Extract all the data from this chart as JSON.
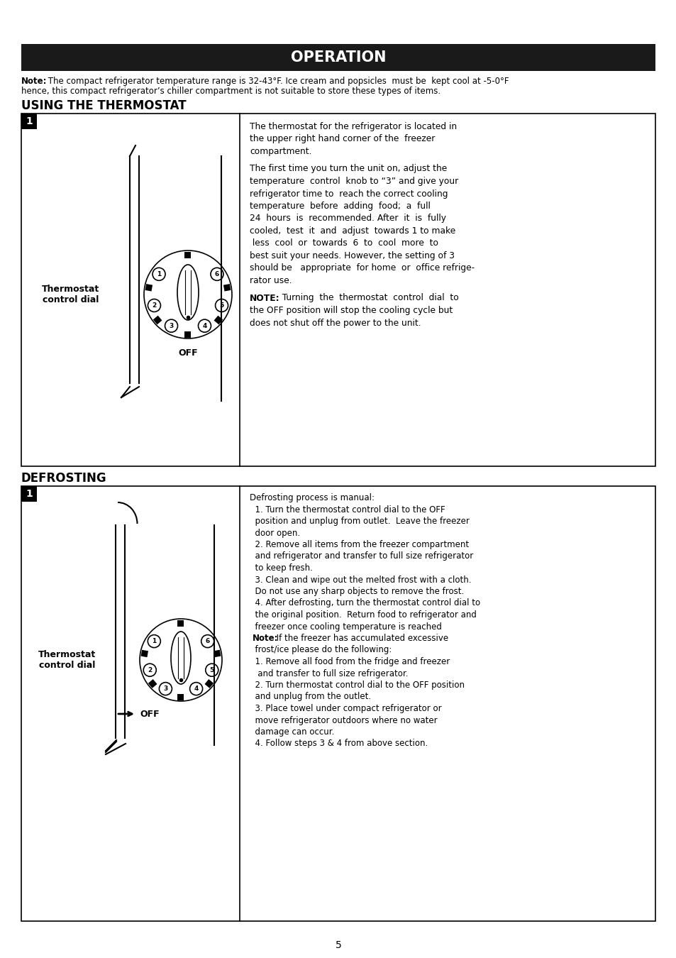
{
  "title": "OPERATION",
  "title_bg": "#1a1a1a",
  "title_color": "#ffffff",
  "note_line1": "Note: The compact refrigerator temperature range is 32-43°F. Ice cream and popsicles  must be  kept cool at -5-0°F",
  "note_line2": "hence, this compact refrigerator’s chiller compartment is not suitable to store these types of items.",
  "section1_title": "USING THE THERMOSTAT",
  "section2_title": "DEFROSTING",
  "thermostat_label": "Thermostat\ncontrol dial",
  "off_label": "OFF",
  "thermostat_para1": "The thermostat for the refrigerator is located in\nthe upper right hand corner of the  freezer\ncompartment.",
  "thermostat_para2": "The first time you turn the unit on, adjust the\ntemperature  control  knob to “3” and give your\nrefrigerator time to  reach the correct cooling\ntemperature  before  adding  food;  a  full\n24  hours  is  recommended. After  it  is  fully\ncooled,  test  it  and  adjust  towards 1 to make\n less  cool  or  towards  6  to  cool  more  to\nbest suit your needs. However, the setting of 3\nshould be   appropriate  for home  or  office refrige-\nrator use.",
  "thermostat_para3_bold": "NOTE:",
  "thermostat_para3_rest": "  Turning  the  thermostat  control  dial  to\nthe OFF position will stop the cooling cycle but\ndoes not shut off the power to the unit.",
  "defrost_line1": "Defrosting process is manual:",
  "defrost_lines": [
    "  1. Turn the thermostat control dial to the OFF",
    "  position and unplug from outlet.  Leave the freezer",
    "  door open.",
    "  2. Remove all items from the freezer compartment",
    "  and refrigerator and transfer to full size refrigerator",
    "  to keep fresh.",
    "  3. Clean and wipe out the melted frost with a cloth.",
    "  Do not use any sharp objects to remove the frost.",
    "  4. After defrosting, turn the thermostat control dial to",
    "  the original position.  Return food to refrigerator and",
    "  freezer once cooling temperature is reached"
  ],
  "defrost_note_bold": "Note:",
  "defrost_note_rest": " If the freezer has accumulated excessive",
  "defrost_lines2": [
    "  frost/ice please do the following:",
    "  1. Remove all food from the fridge and freezer",
    "   and transfer to full size refrigerator.",
    "  2. Turn thermostat control dial to the OFF position",
    "  and unplug from the outlet.",
    "  3. Place towel under compact refrigerator or",
    "  move refrigerator outdoors where no water",
    "  damage can occur.",
    "  4. Follow steps 3 & 4 from above section."
  ],
  "page_number": "5",
  "background_color": "#ffffff",
  "border_color": "#000000",
  "text_color": "#000000"
}
